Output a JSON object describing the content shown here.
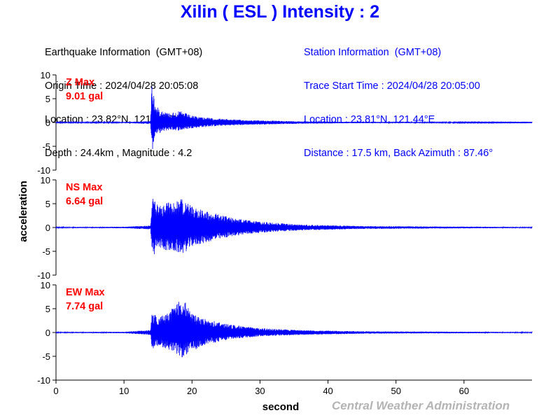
{
  "title": "Xilin ( ESL ) Intensity : 2",
  "earthquake": {
    "header": "Earthquake Information  (GMT+08)",
    "origin_time": "Origin Time : 2024/04/28 20:05:08",
    "location": "Location : 23.82°N, 121.61°E",
    "depth_magnitude": "Depth : 24.4km , Magnitude : 4.2"
  },
  "station": {
    "header": "Station Information  (GMT+08)",
    "trace_start": "Trace Start Time : 2024/04/28 20:05:00",
    "location": "Location : 23.81°N, 121.44°E",
    "distance": "Distance : 17.5 km, Back Azimuth : 87.46°"
  },
  "credit": "Central Weather Administration",
  "colors": {
    "title": "#0000ff",
    "trace": "#0000ff",
    "max_label": "#ff0000",
    "credit": "#b4b4b4"
  },
  "chart_data": {
    "type": "line",
    "xlabel": "second",
    "ylabel": "acceleration",
    "xlim": [
      0,
      70
    ],
    "ylim": [
      -10,
      10
    ],
    "x_ticks": [
      0,
      10,
      20,
      30,
      40,
      50,
      60
    ],
    "y_ticks": [
      10,
      5,
      0,
      -5,
      -10
    ],
    "grid": false,
    "series": [
      {
        "name": "Z Max",
        "max_label": "9.01 gal",
        "envelope": [
          {
            "x": 0,
            "max": 0.1,
            "min": -0.1
          },
          {
            "x": 10,
            "max": 0.1,
            "min": -0.1
          },
          {
            "x": 13.9,
            "max": 0.3,
            "min": -0.3
          },
          {
            "x": 14.1,
            "max": 9.0,
            "min": -6.5
          },
          {
            "x": 14.6,
            "max": 3.5,
            "min": -2.5
          },
          {
            "x": 15.3,
            "max": 2.8,
            "min": -2.2
          },
          {
            "x": 16.5,
            "max": 2.0,
            "min": -1.6
          },
          {
            "x": 18.3,
            "max": 2.4,
            "min": -1.7
          },
          {
            "x": 20,
            "max": 1.4,
            "min": -1.2
          },
          {
            "x": 23,
            "max": 0.9,
            "min": -0.8
          },
          {
            "x": 28,
            "max": 0.5,
            "min": -0.5
          },
          {
            "x": 34,
            "max": 0.3,
            "min": -0.3
          },
          {
            "x": 42,
            "max": 0.15,
            "min": -0.15
          },
          {
            "x": 70,
            "max": 0.05,
            "min": -0.05
          }
        ]
      },
      {
        "name": "NS Max",
        "max_label": "6.64 gal",
        "envelope": [
          {
            "x": 0,
            "max": 0.1,
            "min": -0.1
          },
          {
            "x": 10,
            "max": 0.15,
            "min": -0.15
          },
          {
            "x": 13.9,
            "max": 0.4,
            "min": -0.4
          },
          {
            "x": 14.2,
            "max": 6.6,
            "min": -6.5
          },
          {
            "x": 15,
            "max": 4.5,
            "min": -4.2
          },
          {
            "x": 16.5,
            "max": 5.5,
            "min": -5.0
          },
          {
            "x": 18.7,
            "max": 6.0,
            "min": -5.5
          },
          {
            "x": 20,
            "max": 4.5,
            "min": -4.0
          },
          {
            "x": 22,
            "max": 3.5,
            "min": -3.2
          },
          {
            "x": 26,
            "max": 2.0,
            "min": -1.8
          },
          {
            "x": 30,
            "max": 1.2,
            "min": -1.1
          },
          {
            "x": 36,
            "max": 0.6,
            "min": -0.6
          },
          {
            "x": 45,
            "max": 0.3,
            "min": -0.3
          },
          {
            "x": 70,
            "max": 0.1,
            "min": -0.1
          }
        ]
      },
      {
        "name": "EW Max",
        "max_label": "7.74 gal",
        "envelope": [
          {
            "x": 0,
            "max": 0.1,
            "min": -0.1
          },
          {
            "x": 10,
            "max": 0.15,
            "min": -0.15
          },
          {
            "x": 13.9,
            "max": 0.5,
            "min": -0.5
          },
          {
            "x": 14.1,
            "max": 3.8,
            "min": -3.5
          },
          {
            "x": 15,
            "max": 3.5,
            "min": -2.8
          },
          {
            "x": 16.5,
            "max": 4.0,
            "min": -3.5
          },
          {
            "x": 18.5,
            "max": 7.7,
            "min": -5.3
          },
          {
            "x": 20,
            "max": 4.0,
            "min": -4.0
          },
          {
            "x": 22,
            "max": 2.8,
            "min": -2.5
          },
          {
            "x": 26,
            "max": 1.6,
            "min": -1.4
          },
          {
            "x": 30,
            "max": 0.9,
            "min": -0.8
          },
          {
            "x": 36,
            "max": 0.5,
            "min": -0.5
          },
          {
            "x": 45,
            "max": 0.25,
            "min": -0.25
          },
          {
            "x": 70,
            "max": 0.1,
            "min": -0.1
          }
        ]
      }
    ]
  }
}
